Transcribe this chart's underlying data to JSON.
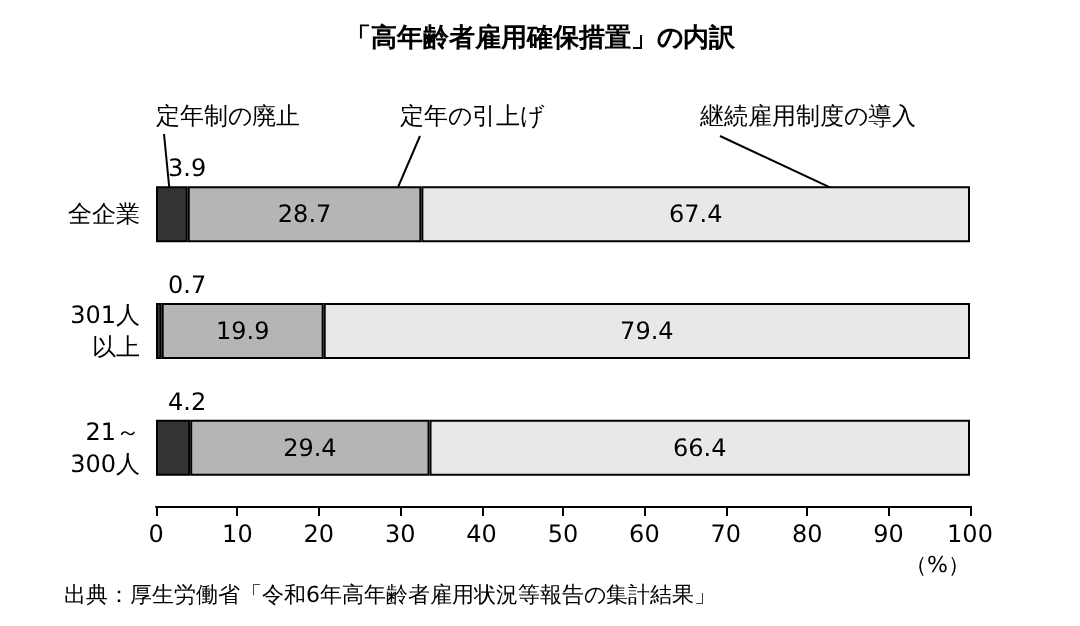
{
  "chart_data": {
    "type": "bar",
    "orientation": "horizontal",
    "stacked": true,
    "title": "「高年齢者雇用確保措置」の内訳",
    "xlabel": "（%）",
    "categories": [
      "全企業",
      "301人以上",
      "21～300人"
    ],
    "series": [
      {
        "name": "定年制の廃止",
        "color": "#333333",
        "values": [
          3.9,
          0.7,
          4.2
        ]
      },
      {
        "name": "定年の引上げ",
        "color": "#b5b5b5",
        "values": [
          28.7,
          19.9,
          29.4
        ]
      },
      {
        "name": "継続雇用制度の導入",
        "color": "#e8e8e8",
        "values": [
          67.4,
          79.4,
          66.4
        ]
      }
    ],
    "xlim": [
      0,
      100
    ],
    "xticks": [
      0,
      10,
      20,
      30,
      40,
      50,
      60,
      70,
      80,
      90,
      100
    ],
    "data_labels": true,
    "grid": false,
    "legend": false,
    "annotations": [
      "出典：厚生労働省「令和6年高年齢者雇用状況等報告の集計結果」"
    ]
  }
}
